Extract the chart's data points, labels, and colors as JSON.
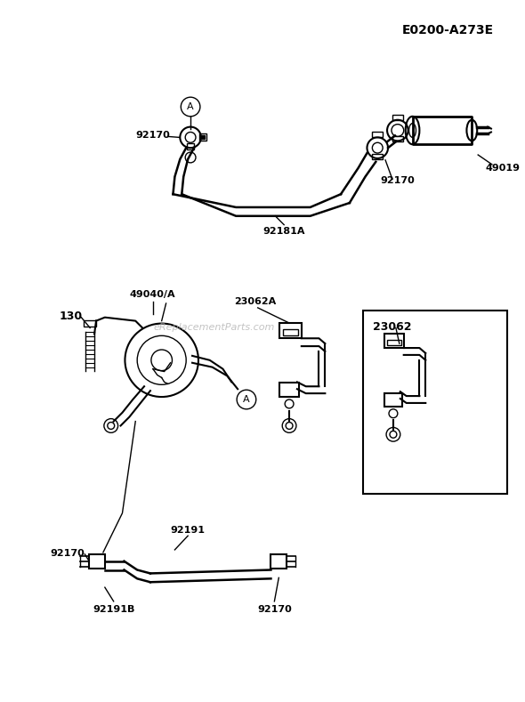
{
  "title_code": "E0200-A273E",
  "watermark": "eReplacementParts.com",
  "bg_color": "#ffffff",
  "fg_color": "#000000",
  "label_92170_tl": "92170",
  "label_92181A": "92181A",
  "label_49019": "49019",
  "label_92170_tr": "92170",
  "label_130": "130",
  "label_49040A": "49040/A",
  "label_23062A": "23062A",
  "label_92170_bl": "92170",
  "label_92191": "92191",
  "label_92191B": "92191B",
  "label_92170_br": "92170",
  "label_23062": "23062"
}
